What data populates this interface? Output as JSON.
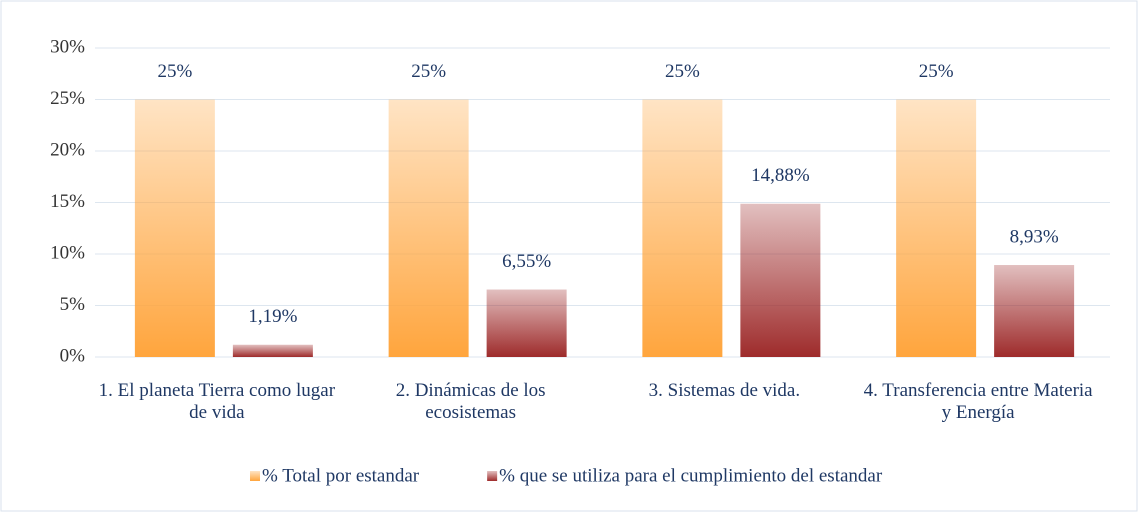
{
  "chart_data": {
    "type": "bar",
    "categories": [
      "1. El planeta Tierra como lugar de vida",
      "2. Dinámicas de los ecosistemas",
      "3. Sistemas de vida.",
      "4. Transferencia entre Materia y Energía"
    ],
    "series": [
      {
        "name": "% Total por estandar",
        "color": "#ffa53d",
        "values": [
          25,
          25,
          25,
          25
        ],
        "value_labels": [
          "25%",
          "25%",
          "25%",
          "25%"
        ]
      },
      {
        "name": "% que se utiliza para el cumplimiento del estandar",
        "color": "#9e2b2b",
        "values": [
          1.19,
          6.55,
          14.88,
          8.93
        ],
        "value_labels": [
          "1,19%",
          "6,55%",
          "14,88%",
          "8,93%"
        ]
      }
    ],
    "ylim": [
      0,
      30
    ],
    "yticks": [
      {
        "value": 0,
        "label": "0%"
      },
      {
        "value": 5,
        "label": "5%"
      },
      {
        "value": 10,
        "label": "10%"
      },
      {
        "value": 15,
        "label": "15%"
      },
      {
        "value": 20,
        "label": "20%"
      },
      {
        "value": 25,
        "label": "25%"
      },
      {
        "value": 30,
        "label": "30%"
      }
    ],
    "grid": true,
    "legend": "bottom"
  }
}
